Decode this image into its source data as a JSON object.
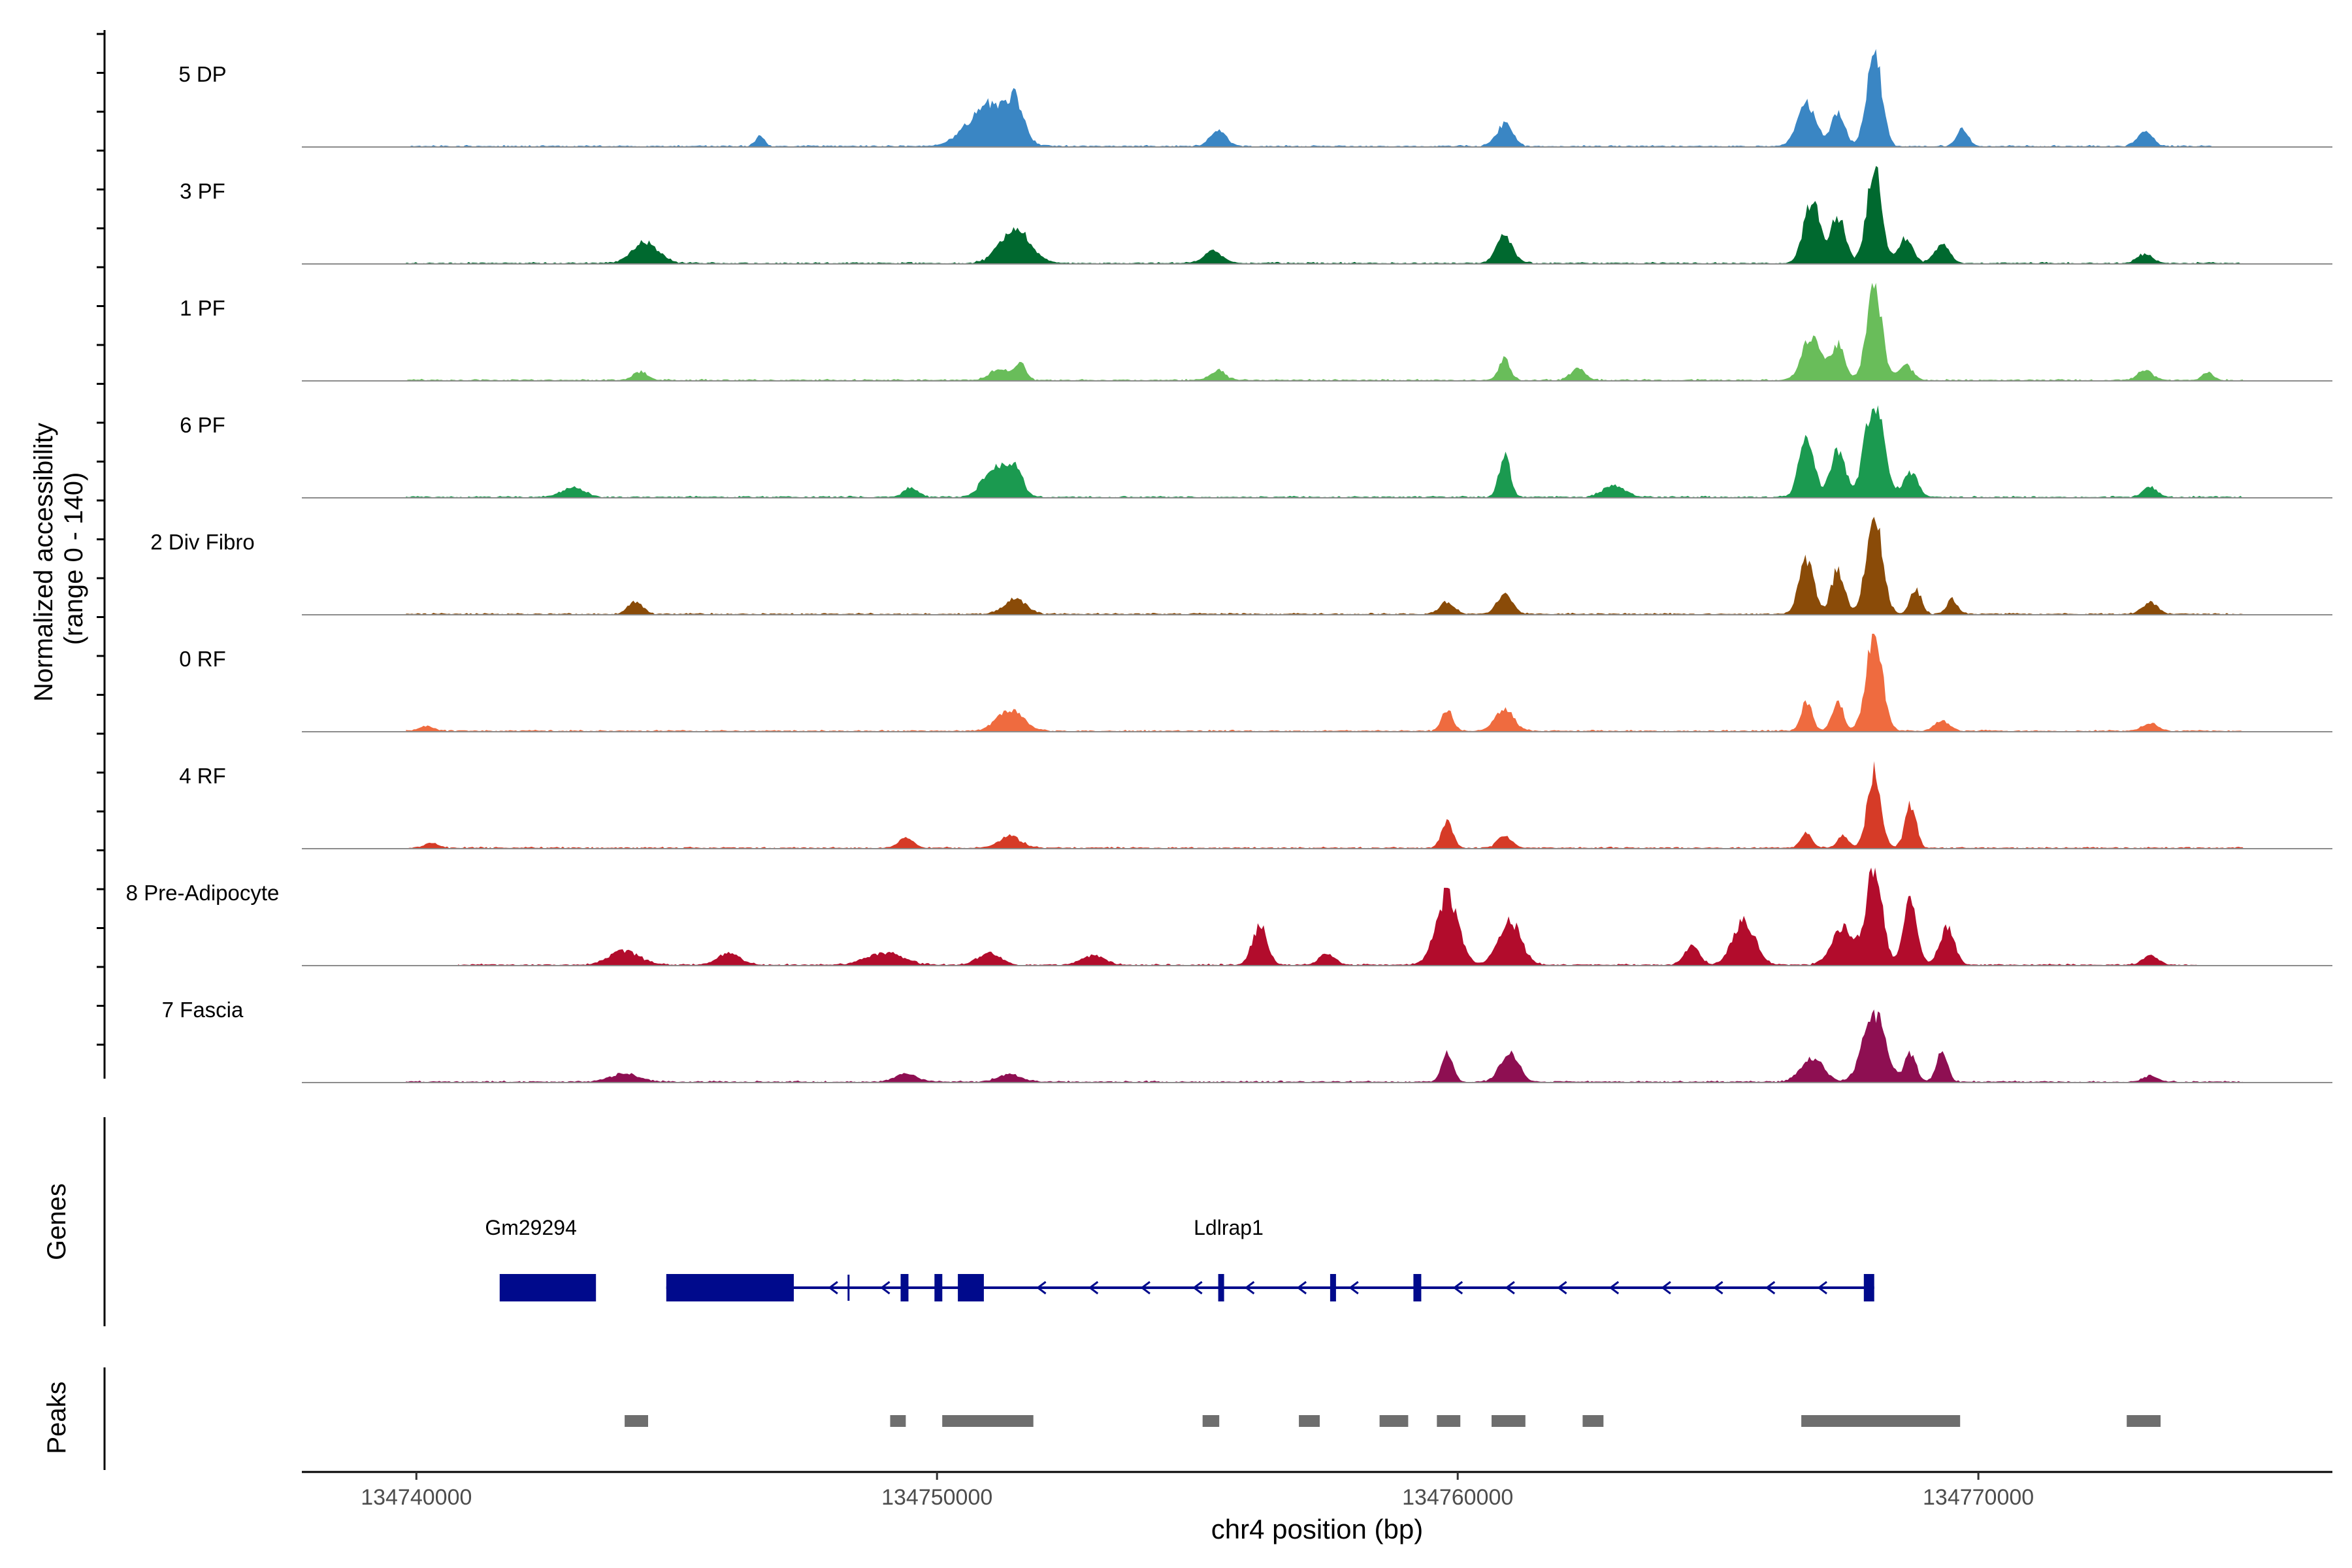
{
  "chart_data": {
    "type": "area",
    "chromosome": "chr4",
    "xlabel": "chr4 position (bp)",
    "ylabel_line1": "Normalized accessibility",
    "ylabel_line2": "(range 0 - 140)",
    "y_range": [
      0,
      140
    ],
    "x_range": [
      134737800,
      134776800
    ],
    "x_ticks": [
      134740000,
      134750000,
      134760000,
      134770000
    ],
    "x_tick_labels": [
      "134740000",
      "134750000",
      "134760000",
      "134770000"
    ],
    "track_panels": [
      "Genes",
      "Peaks"
    ],
    "tracks": [
      {
        "name": "5 DP",
        "color": "#3a86c4",
        "start": 134739800,
        "end": 134774500,
        "peaks": [
          [
            134746600,
            0.1,
            120
          ],
          [
            134751000,
            0.42,
            550
          ],
          [
            134751500,
            0.32,
            220
          ],
          [
            134755400,
            0.18,
            200
          ],
          [
            134760900,
            0.22,
            220
          ],
          [
            134766700,
            0.45,
            250
          ],
          [
            134767300,
            0.35,
            180
          ],
          [
            134768000,
            1.0,
            200
          ],
          [
            134769700,
            0.18,
            150
          ],
          [
            134773200,
            0.15,
            200
          ]
        ]
      },
      {
        "name": "3 PF",
        "color": "#00692f",
        "start": 134739800,
        "end": 134775100,
        "peaks": [
          [
            134744400,
            0.22,
            350
          ],
          [
            134751500,
            0.36,
            400
          ],
          [
            134755300,
            0.12,
            250
          ],
          [
            134760900,
            0.28,
            220
          ],
          [
            134766800,
            0.64,
            220
          ],
          [
            134767300,
            0.48,
            200
          ],
          [
            134768000,
            1.0,
            200
          ],
          [
            134768600,
            0.25,
            200
          ],
          [
            134769300,
            0.2,
            200
          ],
          [
            134773200,
            0.1,
            200
          ]
        ]
      },
      {
        "name": "1 PF",
        "color": "#69bd5a",
        "start": 134739800,
        "end": 134775100,
        "peaks": [
          [
            134744300,
            0.08,
            200
          ],
          [
            134751200,
            0.12,
            250
          ],
          [
            134751600,
            0.18,
            150
          ],
          [
            134755400,
            0.1,
            200
          ],
          [
            134760900,
            0.22,
            150
          ],
          [
            134762300,
            0.12,
            200
          ],
          [
            134766800,
            0.46,
            250
          ],
          [
            134767300,
            0.36,
            180
          ],
          [
            134768000,
            1.0,
            200
          ],
          [
            134768600,
            0.15,
            200
          ],
          [
            134773200,
            0.1,
            200
          ],
          [
            134774400,
            0.08,
            150
          ]
        ]
      },
      {
        "name": "6 PF",
        "color": "#1b9a50",
        "start": 134739800,
        "end": 134775100,
        "peaks": [
          [
            134743000,
            0.1,
            300
          ],
          [
            134749500,
            0.1,
            200
          ],
          [
            134751100,
            0.32,
            300
          ],
          [
            134751500,
            0.3,
            200
          ],
          [
            134760900,
            0.44,
            150
          ],
          [
            134763000,
            0.12,
            300
          ],
          [
            134766700,
            0.62,
            200
          ],
          [
            134767300,
            0.48,
            200
          ],
          [
            134768000,
            1.0,
            250
          ],
          [
            134768700,
            0.25,
            200
          ],
          [
            134773300,
            0.1,
            200
          ]
        ]
      },
      {
        "name": "2 Div Fibro",
        "color": "#8a4b08",
        "start": 134739800,
        "end": 134775100,
        "peaks": [
          [
            134744200,
            0.12,
            200
          ],
          [
            134751500,
            0.15,
            300
          ],
          [
            134759800,
            0.12,
            200
          ],
          [
            134760900,
            0.22,
            200
          ],
          [
            134766700,
            0.55,
            200
          ],
          [
            134767300,
            0.45,
            180
          ],
          [
            134768000,
            1.0,
            220
          ],
          [
            134768800,
            0.25,
            150
          ],
          [
            134769500,
            0.15,
            150
          ],
          [
            134773300,
            0.12,
            200
          ]
        ]
      },
      {
        "name": "0 RF",
        "color": "#ef6b3f",
        "start": 134739800,
        "end": 134775100,
        "peaks": [
          [
            134740200,
            0.05,
            200
          ],
          [
            134751400,
            0.22,
            350
          ],
          [
            134759800,
            0.22,
            150
          ],
          [
            134760900,
            0.22,
            250
          ],
          [
            134766700,
            0.3,
            150
          ],
          [
            134767300,
            0.32,
            150
          ],
          [
            134768000,
            1.0,
            220
          ],
          [
            134769300,
            0.1,
            200
          ],
          [
            134773300,
            0.08,
            200
          ]
        ]
      },
      {
        "name": "4 RF",
        "color": "#d63b27",
        "start": 134739800,
        "end": 134775100,
        "peaks": [
          [
            134740300,
            0.05,
            200
          ],
          [
            134749400,
            0.1,
            200
          ],
          [
            134751400,
            0.12,
            300
          ],
          [
            134759800,
            0.28,
            150
          ],
          [
            134760900,
            0.12,
            200
          ],
          [
            134766700,
            0.15,
            150
          ],
          [
            134767400,
            0.12,
            150
          ],
          [
            134768000,
            0.8,
            180
          ],
          [
            134768700,
            0.45,
            150
          ]
        ]
      },
      {
        "name": "8 Pre-Adipocyte",
        "color": "#b20c2c",
        "start": 134740800,
        "end": 134774200,
        "peaks": [
          [
            134744000,
            0.15,
            400
          ],
          [
            134746000,
            0.12,
            300
          ],
          [
            134749000,
            0.12,
            500
          ],
          [
            134751000,
            0.12,
            300
          ],
          [
            134753000,
            0.1,
            300
          ],
          [
            134756200,
            0.4,
            200
          ],
          [
            134757500,
            0.12,
            200
          ],
          [
            134759800,
            0.72,
            300
          ],
          [
            134761000,
            0.45,
            300
          ],
          [
            134764500,
            0.2,
            200
          ],
          [
            134765500,
            0.45,
            300
          ],
          [
            134767400,
            0.38,
            300
          ],
          [
            134768000,
            1.0,
            220
          ],
          [
            134768700,
            0.65,
            180
          ],
          [
            134769400,
            0.38,
            200
          ],
          [
            134773300,
            0.1,
            200
          ]
        ]
      },
      {
        "name": "7 Fascia",
        "color": "#8e0f52",
        "start": 134739800,
        "end": 134775100,
        "peaks": [
          [
            134744000,
            0.08,
            400
          ],
          [
            134749400,
            0.08,
            300
          ],
          [
            134751400,
            0.08,
            300
          ],
          [
            134759800,
            0.3,
            150
          ],
          [
            134761000,
            0.3,
            250
          ],
          [
            134766800,
            0.25,
            300
          ],
          [
            134768000,
            0.7,
            300
          ],
          [
            134768700,
            0.3,
            150
          ],
          [
            134769300,
            0.3,
            150
          ],
          [
            134773300,
            0.06,
            200
          ]
        ]
      }
    ],
    "genes": [
      {
        "name": "Gm29294",
        "label_pos": 134742200,
        "exons": [
          [
            134741600,
            134743450
          ]
        ]
      },
      {
        "name": "Ldlrap1",
        "label_pos": 134755600,
        "start": 134744800,
        "end": 134768000,
        "strand": "-",
        "exons": [
          [
            134744800,
            134747250
          ],
          [
            134749300,
            134749450
          ],
          [
            134749950,
            134750100
          ],
          [
            134750400,
            134750900
          ],
          [
            134755400,
            134755500
          ],
          [
            134757550,
            134757650
          ],
          [
            134759150,
            134759300
          ],
          [
            134767800,
            134768000
          ]
        ]
      }
    ],
    "gene_color": "#000a8c",
    "peak_regions": [
      [
        134744000,
        134744450
      ],
      [
        134749100,
        134749400
      ],
      [
        134750100,
        134751850
      ],
      [
        134755100,
        134755420
      ],
      [
        134756950,
        134757350
      ],
      [
        134758500,
        134759050
      ],
      [
        134759600,
        134760050
      ],
      [
        134760650,
        134761300
      ],
      [
        134762400,
        134762800
      ],
      [
        134766600,
        134769650
      ],
      [
        134772850,
        134773500
      ]
    ],
    "peak_region_color": "#6e6e6e"
  }
}
